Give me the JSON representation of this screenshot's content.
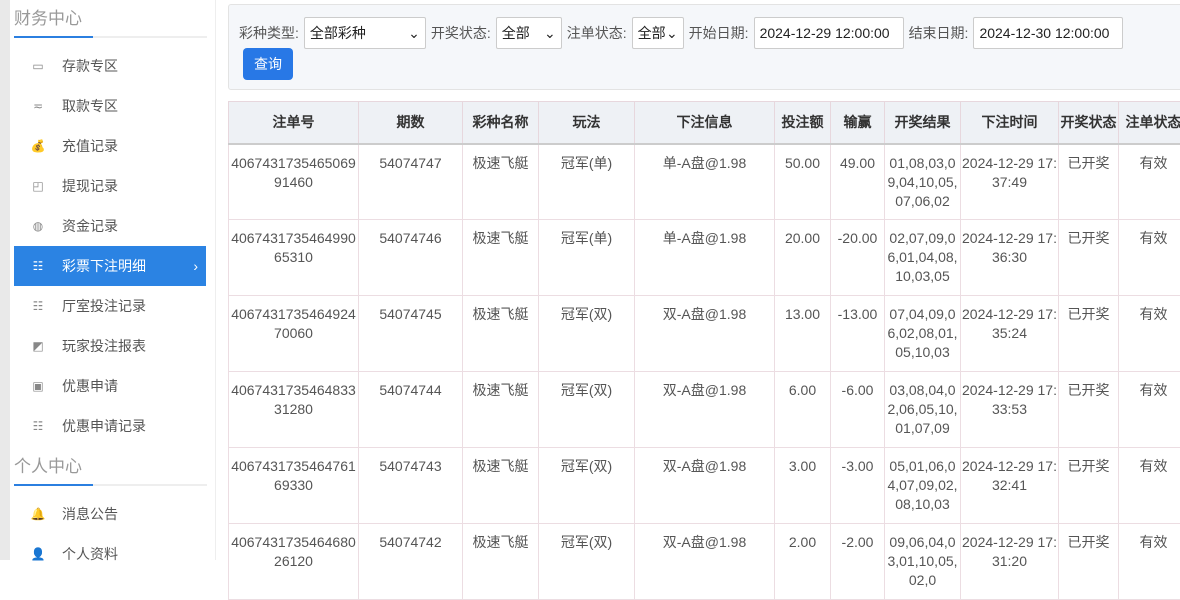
{
  "sidebar": {
    "sections": [
      {
        "title": "财务中心",
        "items": [
          {
            "label": "存款专区",
            "icon": "card-icon"
          },
          {
            "label": "取款专区",
            "icon": "hand-money-icon"
          },
          {
            "label": "充值记录",
            "icon": "money-bag-icon"
          },
          {
            "label": "提现记录",
            "icon": "wallet-icon"
          },
          {
            "label": "资金记录",
            "icon": "piggy-bank-icon"
          },
          {
            "label": "彩票下注明细",
            "icon": "list-icon",
            "active": true
          },
          {
            "label": "厅室投注记录",
            "icon": "list-icon"
          },
          {
            "label": "玩家投注报表",
            "icon": "chart-icon"
          },
          {
            "label": "优惠申请",
            "icon": "gift-icon"
          },
          {
            "label": "优惠申请记录",
            "icon": "list-icon"
          }
        ]
      },
      {
        "title": "个人中心",
        "items": [
          {
            "label": "消息公告",
            "icon": "bell-icon"
          },
          {
            "label": "个人资料",
            "icon": "user-icon"
          }
        ]
      }
    ]
  },
  "filter": {
    "lottery_type_label": "彩种类型:",
    "lottery_type_value": "全部彩种",
    "draw_status_label": "开奖状态:",
    "draw_status_value": "全部",
    "order_status_label": "注单状态:",
    "order_status_value": "全部",
    "start_label": "开始日期:",
    "start_value": "2024-12-29 12:00:00",
    "end_label": "结束日期:",
    "end_value": "2024-12-30 12:00:00",
    "query_label": "查询"
  },
  "table": {
    "headers": [
      "注单号",
      "期数",
      "彩种名称",
      "玩法",
      "下注信息",
      "投注额",
      "输赢",
      "开奖结果",
      "下注时间",
      "开奖状态",
      "注单状态"
    ],
    "rows": [
      [
        "406743173546506991460",
        "54074747",
        "极速飞艇",
        "冠军(单)",
        "单-A盘@1.98",
        "50.00",
        "49.00",
        "01,08,03,09,04,10,05,07,06,02",
        "2024-12-29 17:37:49",
        "已开奖",
        "有效"
      ],
      [
        "406743173546499065310",
        "54074746",
        "极速飞艇",
        "冠军(单)",
        "单-A盘@1.98",
        "20.00",
        "-20.00",
        "02,07,09,06,01,04,08,10,03,05",
        "2024-12-29 17:36:30",
        "已开奖",
        "有效"
      ],
      [
        "406743173546492470060",
        "54074745",
        "极速飞艇",
        "冠军(双)",
        "双-A盘@1.98",
        "13.00",
        "-13.00",
        "07,04,09,06,02,08,01,05,10,03",
        "2024-12-29 17:35:24",
        "已开奖",
        "有效"
      ],
      [
        "406743173546483331280",
        "54074744",
        "极速飞艇",
        "冠军(双)",
        "双-A盘@1.98",
        "6.00",
        "-6.00",
        "03,08,04,02,06,05,10,01,07,09",
        "2024-12-29 17:33:53",
        "已开奖",
        "有效"
      ],
      [
        "406743173546476169330",
        "54074743",
        "极速飞艇",
        "冠军(双)",
        "双-A盘@1.98",
        "3.00",
        "-3.00",
        "05,01,06,04,07,09,02,08,10,03",
        "2024-12-29 17:32:41",
        "已开奖",
        "有效"
      ],
      [
        "406743173546468026120",
        "54074742",
        "极速飞艇",
        "冠军(双)",
        "双-A盘@1.98",
        "2.00",
        "-2.00",
        "09,06,04,03,01,10,05,02,0",
        "2024-12-29 17:31:20",
        "已开奖",
        "有效"
      ]
    ]
  }
}
